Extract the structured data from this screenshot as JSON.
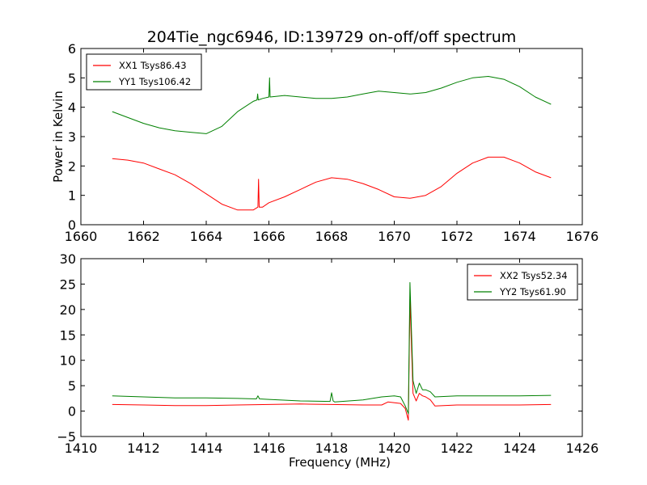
{
  "figure": {
    "title": "204Tie_ngc6946, ID:139729 on-off/off spectrum"
  },
  "colors": {
    "red": "#ff0000",
    "green": "#008000"
  },
  "chart_data": [
    {
      "type": "line",
      "title": "204Tie_ngc6946, ID:139729 on-off/off spectrum",
      "xlabel": "",
      "ylabel": "Power in Kelvin",
      "xlim": [
        1660,
        1676
      ],
      "ylim": [
        0,
        6
      ],
      "xticks": [
        1660,
        1662,
        1664,
        1666,
        1668,
        1670,
        1672,
        1674,
        1676
      ],
      "yticks": [
        0,
        1,
        2,
        3,
        4,
        5,
        6
      ],
      "legend_position": "top-left",
      "series": [
        {
          "name": "XX1 Tsys86.43",
          "color": "#ff0000",
          "x": [
            1661.0,
            1661.5,
            1662.0,
            1662.5,
            1663.0,
            1663.5,
            1664.0,
            1664.5,
            1665.0,
            1665.5,
            1665.65,
            1665.67,
            1665.69,
            1665.8,
            1666.0,
            1666.5,
            1667.0,
            1667.5,
            1668.0,
            1668.5,
            1669.0,
            1669.5,
            1670.0,
            1670.5,
            1671.0,
            1671.5,
            1672.0,
            1672.5,
            1673.0,
            1673.5,
            1674.0,
            1674.5,
            1675.0
          ],
          "y": [
            2.25,
            2.2,
            2.1,
            1.9,
            1.7,
            1.4,
            1.05,
            0.7,
            0.5,
            0.5,
            0.6,
            1.55,
            0.6,
            0.6,
            0.75,
            0.95,
            1.2,
            1.45,
            1.6,
            1.55,
            1.4,
            1.2,
            0.95,
            0.9,
            1.0,
            1.3,
            1.75,
            2.1,
            2.3,
            2.3,
            2.1,
            1.8,
            1.6
          ]
        },
        {
          "name": "YY1 Tsys106.42",
          "color": "#008000",
          "x": [
            1661.0,
            1661.5,
            1662.0,
            1662.5,
            1663.0,
            1663.5,
            1664.0,
            1664.5,
            1665.0,
            1665.5,
            1665.62,
            1665.64,
            1665.66,
            1665.8,
            1666.0,
            1666.02,
            1666.04,
            1666.5,
            1667.0,
            1667.5,
            1668.0,
            1668.5,
            1669.0,
            1669.5,
            1670.0,
            1670.5,
            1671.0,
            1671.5,
            1672.0,
            1672.5,
            1673.0,
            1673.5,
            1674.0,
            1674.5,
            1675.0
          ],
          "y": [
            3.85,
            3.65,
            3.45,
            3.3,
            3.2,
            3.15,
            3.1,
            3.35,
            3.85,
            4.2,
            4.25,
            4.45,
            4.25,
            4.3,
            4.35,
            5.0,
            4.35,
            4.4,
            4.35,
            4.3,
            4.3,
            4.35,
            4.45,
            4.55,
            4.5,
            4.45,
            4.5,
            4.65,
            4.85,
            5.0,
            5.05,
            4.95,
            4.7,
            4.35,
            4.1
          ]
        }
      ]
    },
    {
      "type": "line",
      "title": "",
      "xlabel": "Frequency (MHz)",
      "ylabel": "",
      "xlim": [
        1410,
        1426
      ],
      "ylim": [
        -5,
        30
      ],
      "xticks": [
        1410,
        1412,
        1414,
        1416,
        1418,
        1420,
        1422,
        1424,
        1426
      ],
      "yticks": [
        -5,
        0,
        5,
        10,
        15,
        20,
        25,
        30
      ],
      "legend_position": "top-right",
      "series": [
        {
          "name": "XX2 Tsys52.34",
          "color": "#ff0000",
          "x": [
            1411.0,
            1412.0,
            1413.0,
            1414.0,
            1415.0,
            1416.0,
            1417.0,
            1418.0,
            1419.0,
            1419.6,
            1419.8,
            1420.2,
            1420.35,
            1420.45,
            1420.5,
            1420.6,
            1420.7,
            1420.8,
            1420.9,
            1421.0,
            1421.15,
            1421.3,
            1422.0,
            1423.0,
            1424.0,
            1425.0
          ],
          "y": [
            1.3,
            1.2,
            1.1,
            1.1,
            1.2,
            1.3,
            1.4,
            1.3,
            1.2,
            1.2,
            1.8,
            1.5,
            0.5,
            -1.8,
            22.0,
            3.5,
            2.0,
            3.5,
            3.0,
            2.8,
            2.2,
            1.0,
            1.2,
            1.2,
            1.2,
            1.3
          ]
        },
        {
          "name": "YY2 Tsys61.90",
          "color": "#008000",
          "x": [
            1411.0,
            1412.0,
            1413.0,
            1414.0,
            1415.0,
            1415.6,
            1415.65,
            1415.7,
            1416.0,
            1417.0,
            1417.95,
            1418.0,
            1418.05,
            1418.1,
            1419.0,
            1419.6,
            1420.0,
            1420.2,
            1420.35,
            1420.45,
            1420.5,
            1420.6,
            1420.7,
            1420.8,
            1420.9,
            1421.0,
            1421.15,
            1421.3,
            1422.0,
            1423.0,
            1424.0,
            1425.0
          ],
          "y": [
            3.0,
            2.8,
            2.6,
            2.6,
            2.5,
            2.4,
            3.0,
            2.4,
            2.3,
            2.0,
            1.9,
            3.6,
            2.0,
            1.8,
            2.2,
            2.8,
            3.0,
            2.8,
            1.0,
            -0.5,
            25.3,
            6.0,
            3.5,
            5.5,
            4.2,
            4.2,
            3.8,
            2.8,
            3.0,
            3.0,
            3.0,
            3.1
          ]
        }
      ]
    }
  ]
}
